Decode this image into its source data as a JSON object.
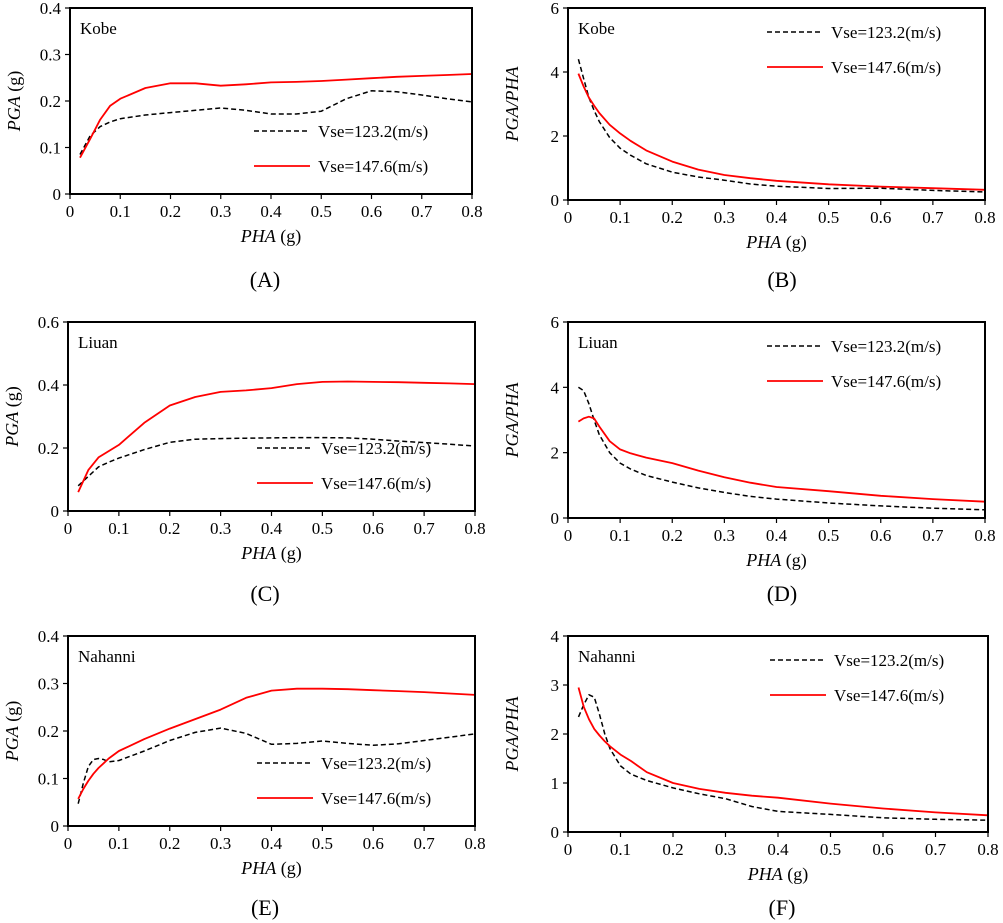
{
  "figure": {
    "series_styles": [
      {
        "color": "#000000",
        "dash": "dashed"
      },
      {
        "color": "#ff0000",
        "dash": "solid"
      }
    ]
  },
  "chart_data": [
    {
      "type": "line",
      "panel_label": "(A)",
      "annotation": "Kobe",
      "xlabel": "PHA",
      "xunit": " (g)",
      "ylabel": "PGA",
      "yunit": " (g)",
      "xlim": [
        0,
        0.8
      ],
      "ylim": [
        0,
        0.4
      ],
      "xticks": [
        "0",
        "0.1",
        "0.2",
        "0.3",
        "0.4",
        "0.5",
        "0.6",
        "0.7",
        "0.8"
      ],
      "yticks": [
        "0",
        "0.1",
        "0.2",
        "0.3",
        "0.4"
      ],
      "legend_position": "bottom-right",
      "series": [
        {
          "name": "Vse=123.2(m/s)",
          "x": [
            0.02,
            0.04,
            0.06,
            0.08,
            0.1,
            0.15,
            0.2,
            0.25,
            0.3,
            0.35,
            0.4,
            0.45,
            0.5,
            0.55,
            0.6,
            0.65,
            0.7,
            0.75,
            0.8
          ],
          "y": [
            0.085,
            0.125,
            0.145,
            0.155,
            0.162,
            0.17,
            0.175,
            0.18,
            0.185,
            0.18,
            0.172,
            0.172,
            0.178,
            0.205,
            0.222,
            0.22,
            0.213,
            0.205,
            0.198
          ]
        },
        {
          "name": "Vse=147.6(m/s)",
          "x": [
            0.02,
            0.04,
            0.06,
            0.08,
            0.1,
            0.15,
            0.2,
            0.25,
            0.3,
            0.35,
            0.4,
            0.45,
            0.5,
            0.55,
            0.6,
            0.65,
            0.7,
            0.75,
            0.8
          ],
          "y": [
            0.078,
            0.118,
            0.16,
            0.19,
            0.205,
            0.228,
            0.238,
            0.238,
            0.233,
            0.236,
            0.24,
            0.241,
            0.243,
            0.246,
            0.249,
            0.252,
            0.254,
            0.256,
            0.258
          ]
        }
      ]
    },
    {
      "type": "line",
      "panel_label": "(B)",
      "annotation": "Kobe",
      "xlabel": "PHA",
      "xunit": " (g)",
      "ylabel": "PGA/PHA",
      "yunit": "",
      "xlim": [
        0,
        0.8
      ],
      "ylim": [
        0,
        6
      ],
      "xticks": [
        "0",
        "0.1",
        "0.2",
        "0.3",
        "0.4",
        "0.5",
        "0.6",
        "0.7",
        "0.8"
      ],
      "yticks": [
        "0",
        "2",
        "4",
        "6"
      ],
      "legend_position": "top-right",
      "series": [
        {
          "name": "Vse=123.2(m/s)",
          "x": [
            0.02,
            0.03,
            0.04,
            0.05,
            0.06,
            0.08,
            0.1,
            0.12,
            0.15,
            0.2,
            0.25,
            0.3,
            0.35,
            0.4,
            0.5,
            0.6,
            0.7,
            0.8
          ],
          "y": [
            4.4,
            3.8,
            3.2,
            2.8,
            2.45,
            1.95,
            1.62,
            1.4,
            1.13,
            0.87,
            0.72,
            0.62,
            0.5,
            0.43,
            0.36,
            0.37,
            0.3,
            0.25
          ]
        },
        {
          "name": "Vse=147.6(m/s)",
          "x": [
            0.02,
            0.03,
            0.04,
            0.05,
            0.06,
            0.08,
            0.1,
            0.12,
            0.15,
            0.2,
            0.25,
            0.3,
            0.35,
            0.4,
            0.5,
            0.6,
            0.7,
            0.8
          ],
          "y": [
            3.95,
            3.55,
            3.2,
            2.95,
            2.72,
            2.35,
            2.08,
            1.85,
            1.55,
            1.2,
            0.95,
            0.78,
            0.68,
            0.6,
            0.49,
            0.42,
            0.37,
            0.32
          ]
        }
      ]
    },
    {
      "type": "line",
      "panel_label": "(C)",
      "annotation": "Liuan",
      "xlabel": "PHA",
      "xunit": " (g)",
      "ylabel": "PGA",
      "yunit": " (g)",
      "xlim": [
        0,
        0.8
      ],
      "ylim": [
        0,
        0.6
      ],
      "xticks": [
        "0",
        "0.1",
        "0.2",
        "0.3",
        "0.4",
        "0.5",
        "0.6",
        "0.7",
        "0.8"
      ],
      "yticks": [
        "0",
        "0.2",
        "0.4",
        "0.6"
      ],
      "legend_position": "bottom-right",
      "series": [
        {
          "name": "Vse=123.2(m/s)",
          "x": [
            0.02,
            0.04,
            0.06,
            0.08,
            0.1,
            0.15,
            0.2,
            0.25,
            0.3,
            0.35,
            0.4,
            0.45,
            0.5,
            0.55,
            0.6,
            0.65,
            0.7,
            0.75,
            0.8
          ],
          "y": [
            0.08,
            0.11,
            0.14,
            0.155,
            0.168,
            0.195,
            0.218,
            0.228,
            0.23,
            0.231,
            0.232,
            0.233,
            0.233,
            0.232,
            0.228,
            0.222,
            0.217,
            0.212,
            0.206
          ]
        },
        {
          "name": "Vse=147.6(m/s)",
          "x": [
            0.02,
            0.04,
            0.06,
            0.08,
            0.1,
            0.15,
            0.2,
            0.25,
            0.3,
            0.35,
            0.4,
            0.45,
            0.5,
            0.55,
            0.6,
            0.65,
            0.7,
            0.75,
            0.8
          ],
          "y": [
            0.06,
            0.13,
            0.17,
            0.19,
            0.21,
            0.28,
            0.335,
            0.362,
            0.378,
            0.383,
            0.39,
            0.403,
            0.41,
            0.411,
            0.41,
            0.409,
            0.407,
            0.405,
            0.403
          ]
        }
      ]
    },
    {
      "type": "line",
      "panel_label": "(D)",
      "annotation": "Liuan",
      "xlabel": "PHA",
      "xunit": " (g)",
      "ylabel": "PGA/PHA",
      "yunit": "",
      "xlim": [
        0,
        0.8
      ],
      "ylim": [
        0,
        6
      ],
      "xticks": [
        "0",
        "0.1",
        "0.2",
        "0.3",
        "0.4",
        "0.5",
        "0.6",
        "0.7",
        "0.8"
      ],
      "yticks": [
        "0",
        "2",
        "4",
        "6"
      ],
      "legend_position": "top-right",
      "series": [
        {
          "name": "Vse=123.2(m/s)",
          "x": [
            0.02,
            0.03,
            0.04,
            0.05,
            0.06,
            0.08,
            0.1,
            0.12,
            0.15,
            0.2,
            0.25,
            0.3,
            0.35,
            0.4,
            0.5,
            0.6,
            0.7,
            0.8
          ],
          "y": [
            4.0,
            3.9,
            3.5,
            3.0,
            2.55,
            2.0,
            1.68,
            1.5,
            1.3,
            1.1,
            0.92,
            0.78,
            0.66,
            0.58,
            0.46,
            0.37,
            0.3,
            0.25
          ]
        },
        {
          "name": "Vse=147.6(m/s)",
          "x": [
            0.02,
            0.03,
            0.04,
            0.05,
            0.06,
            0.08,
            0.1,
            0.12,
            0.15,
            0.2,
            0.25,
            0.3,
            0.35,
            0.4,
            0.5,
            0.6,
            0.7,
            0.8
          ],
          "y": [
            2.95,
            3.05,
            3.1,
            3.05,
            2.8,
            2.35,
            2.1,
            1.98,
            1.85,
            1.68,
            1.45,
            1.25,
            1.08,
            0.95,
            0.82,
            0.68,
            0.58,
            0.5
          ]
        }
      ]
    },
    {
      "type": "line",
      "panel_label": "(E)",
      "annotation": "Nahanni",
      "xlabel": "PHA",
      "xunit": " (g)",
      "ylabel": "PGA",
      "yunit": " (g)",
      "xlim": [
        0,
        0.8
      ],
      "ylim": [
        0,
        0.4
      ],
      "xticks": [
        "0",
        "0.1",
        "0.2",
        "0.3",
        "0.4",
        "0.5",
        "0.6",
        "0.7",
        "0.8"
      ],
      "yticks": [
        "0",
        "0.1",
        "0.2",
        "0.3",
        "0.4"
      ],
      "legend_position": "bottom-right",
      "series": [
        {
          "name": "Vse=123.2(m/s)",
          "x": [
            0.02,
            0.03,
            0.04,
            0.05,
            0.06,
            0.07,
            0.08,
            0.1,
            0.15,
            0.2,
            0.25,
            0.3,
            0.35,
            0.4,
            0.45,
            0.5,
            0.55,
            0.6,
            0.65,
            0.7,
            0.75,
            0.8
          ],
          "y": [
            0.047,
            0.09,
            0.125,
            0.14,
            0.142,
            0.14,
            0.135,
            0.138,
            0.158,
            0.18,
            0.197,
            0.206,
            0.195,
            0.172,
            0.174,
            0.179,
            0.174,
            0.17,
            0.173,
            0.18,
            0.187,
            0.194
          ]
        },
        {
          "name": "Vse=147.6(m/s)",
          "x": [
            0.02,
            0.03,
            0.04,
            0.05,
            0.06,
            0.07,
            0.08,
            0.1,
            0.15,
            0.2,
            0.25,
            0.3,
            0.35,
            0.4,
            0.45,
            0.5,
            0.55,
            0.6,
            0.65,
            0.7,
            0.75,
            0.8
          ],
          "y": [
            0.057,
            0.078,
            0.095,
            0.11,
            0.122,
            0.132,
            0.142,
            0.158,
            0.183,
            0.205,
            0.225,
            0.245,
            0.27,
            0.285,
            0.289,
            0.289,
            0.288,
            0.286,
            0.284,
            0.282,
            0.279,
            0.276
          ]
        }
      ]
    },
    {
      "type": "line",
      "panel_label": "(F)",
      "annotation": "Nahanni",
      "xlabel": "PHA",
      "xunit": " (g)",
      "ylabel": "PGA/PHA",
      "yunit": "",
      "xlim": [
        0,
        0.8
      ],
      "ylim": [
        0,
        4
      ],
      "xticks": [
        "0",
        "0.1",
        "0.2",
        "0.3",
        "0.4",
        "0.5",
        "0.6",
        "0.7",
        "0.8"
      ],
      "yticks": [
        "0",
        "1",
        "2",
        "3",
        "4"
      ],
      "legend_position": "top-right",
      "series": [
        {
          "name": "Vse=123.2(m/s)",
          "x": [
            0.02,
            0.03,
            0.04,
            0.05,
            0.06,
            0.07,
            0.08,
            0.1,
            0.12,
            0.15,
            0.2,
            0.25,
            0.3,
            0.35,
            0.4,
            0.5,
            0.6,
            0.7,
            0.8
          ],
          "y": [
            2.35,
            2.6,
            2.8,
            2.75,
            2.4,
            2.0,
            1.7,
            1.35,
            1.18,
            1.05,
            0.9,
            0.78,
            0.68,
            0.52,
            0.42,
            0.36,
            0.29,
            0.26,
            0.24
          ]
        },
        {
          "name": "Vse=147.6(m/s)",
          "x": [
            0.02,
            0.03,
            0.04,
            0.05,
            0.06,
            0.07,
            0.08,
            0.1,
            0.12,
            0.15,
            0.2,
            0.25,
            0.3,
            0.35,
            0.4,
            0.5,
            0.6,
            0.7,
            0.8
          ],
          "y": [
            2.95,
            2.55,
            2.3,
            2.1,
            1.97,
            1.85,
            1.75,
            1.58,
            1.45,
            1.22,
            1.0,
            0.88,
            0.8,
            0.74,
            0.7,
            0.58,
            0.48,
            0.4,
            0.34
          ]
        }
      ]
    }
  ]
}
